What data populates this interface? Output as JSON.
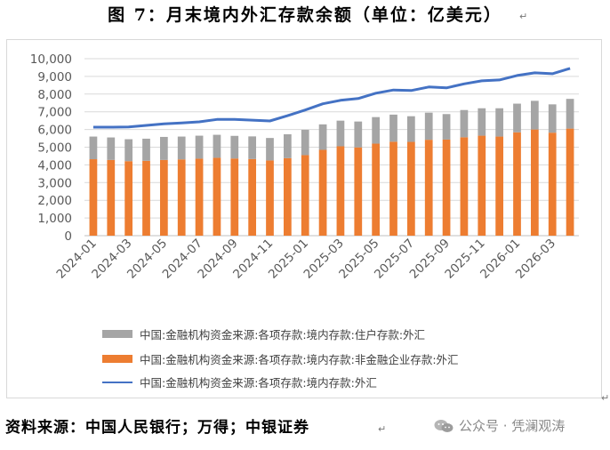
{
  "title": "图 7：月末境内外汇存款余额（单位：亿美元）",
  "source": "资料来源：中国人民银行；万得；中银证券",
  "watermark": "公众号 · 凭澜观涛",
  "colors": {
    "household": "#a5a5a5",
    "corporate": "#ed7d31",
    "total": "#4472c4"
  },
  "chart_data": {
    "type": "bar",
    "x": [
      "2024-01",
      "2024-02",
      "2024-03",
      "2024-04",
      "2024-05",
      "2024-06",
      "2024-07",
      "2024-08",
      "2024-09",
      "2024-10",
      "2024-11",
      "2024-12",
      "2025-01",
      "2025-02",
      "2025-03",
      "2025-04",
      "2025-05",
      "2025-06",
      "2025-07",
      "2025-08",
      "2025-09",
      "2025-10",
      "2025-11",
      "2025-12",
      "2026-01",
      "2026-02",
      "2026-03",
      "2026-04"
    ],
    "xtick_labels": [
      "2024-01",
      "2024-03",
      "2024-05",
      "2024-07",
      "2024-09",
      "2024-11",
      "2025-01",
      "2025-03",
      "2025-05",
      "2025-07",
      "2025-09",
      "2025-11",
      "2026-01",
      "2026-03"
    ],
    "stacked": true,
    "series": [
      {
        "name": "中国:金融机构资金来源:各项存款:境内存款:非金融企业存款:外汇",
        "kind": "bar",
        "values": [
          4320,
          4280,
          4210,
          4230,
          4280,
          4310,
          4350,
          4400,
          4360,
          4330,
          4250,
          4380,
          4550,
          4850,
          5050,
          4990,
          5200,
          5310,
          5300,
          5420,
          5430,
          5560,
          5650,
          5600,
          5840,
          6000,
          5820,
          6050
        ]
      },
      {
        "name": "中国:金融机构资金来源:各项存款:境内存款:住户存款:外汇",
        "kind": "bar",
        "values": [
          1280,
          1270,
          1240,
          1250,
          1300,
          1290,
          1300,
          1300,
          1280,
          1280,
          1270,
          1350,
          1430,
          1440,
          1450,
          1460,
          1500,
          1530,
          1450,
          1530,
          1440,
          1540,
          1550,
          1600,
          1620,
          1620,
          1600,
          1680
        ]
      },
      {
        "name": "中国:金融机构资金来源:各项存款:境内存款:外汇",
        "kind": "line",
        "values": [
          6130,
          6130,
          6140,
          6230,
          6320,
          6370,
          6430,
          6570,
          6570,
          6530,
          6480,
          6780,
          7100,
          7450,
          7650,
          7750,
          8050,
          8230,
          8200,
          8400,
          8350,
          8580,
          8750,
          8800,
          9050,
          9200,
          9150,
          9450
        ]
      }
    ],
    "legend": [
      {
        "series": 1,
        "label": "中国:金融机构资金来源:各项存款:境内存款:住户存款:外汇"
      },
      {
        "series": 0,
        "label": "中国:金融机构资金来源:各项存款:境内存款:非金融企业存款:外汇"
      },
      {
        "series": 2,
        "label": "中国:金融机构资金来源:各项存款:境内存款:外汇"
      }
    ],
    "yticks": [
      "0",
      "1,000",
      "2,000",
      "3,000",
      "4,000",
      "5,000",
      "6,000",
      "7,000",
      "8,000",
      "9,000",
      "10,000"
    ],
    "ylim": [
      0,
      10000
    ],
    "xlabel": "",
    "ylabel": "",
    "grid": true,
    "legend_position": "bottom"
  }
}
